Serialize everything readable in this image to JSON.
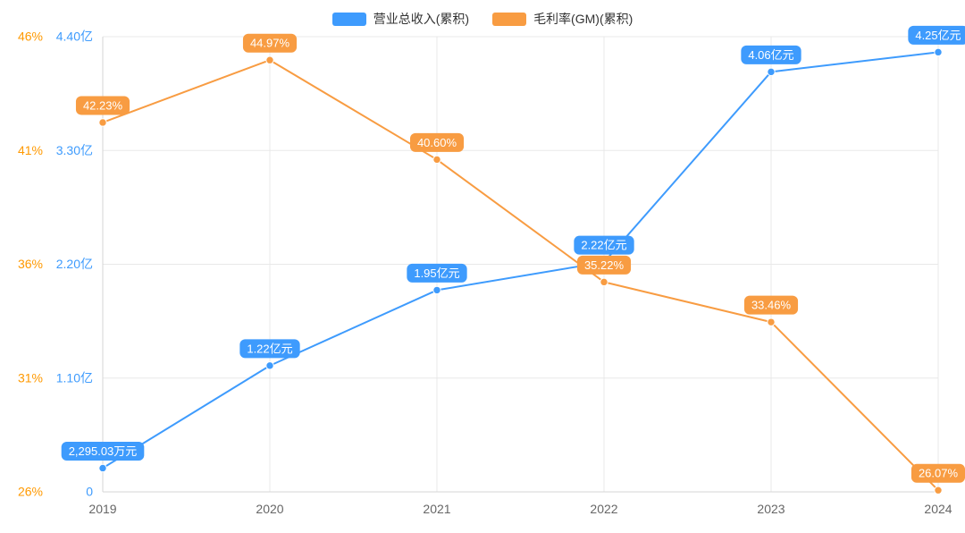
{
  "legend": {
    "items": [
      {
        "label": "营业总收入(累积)",
        "color": "#3e9bfd"
      },
      {
        "label": "毛利率(GM)(累积)",
        "color": "#f89c42"
      }
    ]
  },
  "chart_data": {
    "type": "line",
    "x_labels": [
      "2019",
      "2020",
      "2021",
      "2022",
      "2023",
      "2024"
    ],
    "series": [
      {
        "name": "营业总收入(累积)",
        "yaxis": "amount",
        "color": "#3e9bfd",
        "values": [
          0.229503,
          1.22,
          1.95,
          2.22,
          4.06,
          4.25
        ],
        "point_labels": [
          "2,295.03万元",
          "1.22亿元",
          "1.95亿元",
          "2.22亿元",
          "4.06亿元",
          "4.25亿元"
        ]
      },
      {
        "name": "毛利率(GM)(累积)",
        "yaxis": "percent",
        "color": "#f89c42",
        "values": [
          42.23,
          44.97,
          40.6,
          35.22,
          33.46,
          26.07
        ],
        "point_labels": [
          "42.23%",
          "44.97%",
          "40.60%",
          "35.22%",
          "33.46%",
          "26.07%"
        ]
      }
    ],
    "axes": {
      "amount": {
        "title": "",
        "ticks": [
          "0",
          "1.10亿",
          "2.20亿",
          "3.30亿",
          "4.40亿"
        ],
        "min": 0,
        "max": 4.4,
        "color": "#3e9bfd"
      },
      "percent": {
        "title": "",
        "ticks": [
          "26%",
          "31%",
          "36%",
          "41%",
          "46%"
        ],
        "min": 26,
        "max": 46,
        "color": "#ff9900"
      }
    },
    "x_label_color": "#666666",
    "grid": true,
    "grid_color": "#e8e8e8",
    "axis_line_color": "#d6d6d6",
    "legend_position": "top-center"
  }
}
